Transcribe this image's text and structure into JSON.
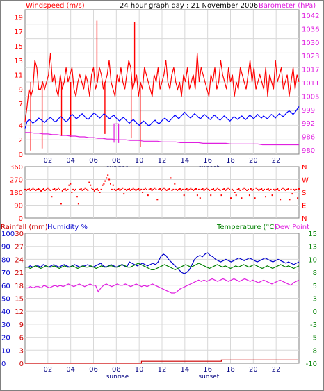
{
  "title": "24 hour graph day : 21 November 2006",
  "colors": {
    "wind": "#ff0000",
    "temp": "#0000ff",
    "baro": "#e020e0",
    "dir": "#ff0000",
    "rain": "#cc0000",
    "humid": "#0000cc",
    "temp2": "#008000",
    "dew": "#e020e0",
    "grid": "#d8d8d8"
  },
  "hour_ticks": [
    "02",
    "04",
    "06",
    "08",
    "10",
    "12",
    "14",
    "16",
    "18",
    "20",
    "22"
  ],
  "sunrise_label": "sunrise",
  "sunset_label": "sunset",
  "chart_data": [
    {
      "type": "line",
      "label_left": "Windspeed (m/s)",
      "label_right": "Barometer (hPa)",
      "ticks_left": [
        "19",
        "17",
        "15",
        "13",
        "11",
        "9",
        "7",
        "4",
        "2",
        "0"
      ],
      "ticks_right": [
        "1042",
        "1036",
        "1030",
        "1023",
        "1017",
        "1011",
        "1005",
        "999",
        "992",
        "986",
        "980"
      ],
      "ylim": [
        0,
        20
      ],
      "series": [
        {
          "name": "windspeed",
          "values": [
            4.5,
            6.5,
            9,
            8,
            9,
            13,
            12,
            9,
            9,
            10,
            9,
            10,
            11,
            14,
            10,
            11,
            9,
            8,
            11,
            9,
            10,
            12,
            10,
            11,
            12,
            9,
            8,
            10,
            11,
            10,
            9,
            11,
            10,
            8,
            11,
            12,
            9,
            10,
            12,
            11,
            9,
            10,
            11,
            13,
            10,
            9,
            8,
            11,
            10,
            12,
            10,
            9,
            11,
            13,
            12,
            9,
            10,
            11,
            8,
            10,
            9,
            12,
            11,
            10,
            9,
            8,
            11,
            10,
            12,
            9,
            10,
            11,
            13,
            10,
            9,
            11,
            12,
            10,
            9,
            10,
            8,
            11,
            10,
            12,
            9,
            10,
            11,
            9,
            14,
            10,
            12,
            11,
            10,
            9,
            8,
            11,
            10,
            12,
            9,
            10,
            13,
            11,
            10,
            9,
            12,
            10,
            11,
            8,
            10,
            9,
            12,
            11,
            10,
            9,
            11,
            13,
            10,
            12,
            9,
            10,
            11,
            10,
            9,
            12,
            8,
            11,
            10,
            9,
            13,
            10,
            11,
            12,
            9,
            10,
            11,
            8,
            10,
            12,
            9,
            11,
            10
          ],
          "spikes": [
            [
              0.5,
              0.5
            ],
            [
              1.5,
              0.8
            ],
            [
              3.2,
              2.5
            ],
            [
              4.0,
              2.4
            ],
            [
              6.3,
              18.5
            ],
            [
              7.0,
              2.8
            ],
            [
              9.3,
              2.2
            ],
            [
              9.6,
              18.3
            ],
            [
              10.1,
              1.0
            ]
          ]
        },
        {
          "name": "temperature",
          "values": [
            3.5,
            4.5,
            4.8,
            4.6,
            4.3,
            4.5,
            4.7,
            5.0,
            4.8,
            4.6,
            4.4,
            4.7,
            4.9,
            5.1,
            4.8,
            4.5,
            4.6,
            4.9,
            5.2,
            5.0,
            4.7,
            4.5,
            4.8,
            5.3,
            5.5,
            5.2,
            4.9,
            5.1,
            5.4,
            5.6,
            5.3,
            5.0,
            4.8,
            5.1,
            5.4,
            5.7,
            5.5,
            5.2,
            5.0,
            5.3,
            5.6,
            5.4,
            5.1,
            4.9,
            5.2,
            5.4,
            5.1,
            4.8,
            4.6,
            4.9,
            5.1,
            4.8,
            4.5,
            4.3,
            4.6,
            4.8,
            4.5,
            4.2,
            4.0,
            4.3,
            4.6,
            4.4,
            4.1,
            3.9,
            4.2,
            4.5,
            4.7,
            4.4,
            4.2,
            4.5,
            4.8,
            5.0,
            4.7,
            4.5,
            4.8,
            5.1,
            5.4,
            5.2,
            4.9,
            5.2,
            5.5,
            5.8,
            5.5,
            5.2,
            5.0,
            5.3,
            5.6,
            5.4,
            5.1,
            4.9,
            5.2,
            5.5,
            5.3,
            5.0,
            4.8,
            5.1,
            5.4,
            5.2,
            4.9,
            4.7,
            5.0,
            5.3,
            5.1,
            4.8,
            4.6,
            4.9,
            5.2,
            5.0,
            4.8,
            5.1,
            5.3,
            5.0,
            4.8,
            5.1,
            5.4,
            5.2,
            4.9,
            5.2,
            5.5,
            5.2,
            5.0,
            5.3,
            5.1,
            4.9,
            5.2,
            5.5,
            5.3,
            5.0,
            5.3,
            5.6,
            5.4,
            5.2,
            5.5,
            5.8,
            6.0,
            5.8,
            5.5,
            5.8,
            6.2,
            6.6
          ]
        },
        {
          "name": "barometer",
          "values": [
            3.0,
            3.0,
            2.9,
            2.9,
            2.8,
            2.8,
            2.7,
            2.7,
            2.6,
            2.6,
            2.5,
            2.5,
            2.4,
            2.4,
            2.3,
            2.3,
            2.2,
            2.2,
            2.1,
            2.1,
            2.0,
            2.0,
            2.0,
            1.9,
            1.9,
            1.9,
            1.8,
            1.8,
            1.8,
            1.8,
            1.7,
            1.7,
            1.7,
            1.7,
            1.6,
            1.6,
            1.6,
            1.6,
            1.6,
            1.5,
            1.5,
            1.5,
            1.5,
            1.5,
            1.5,
            1.4,
            1.4,
            1.4,
            1.4,
            1.4,
            1.4,
            1.4,
            1.3,
            1.3,
            1.3,
            1.3,
            1.3,
            1.3,
            1.3,
            1.3,
            1.3
          ],
          "spike_x": [
            7.8,
            8.2
          ],
          "spike_y": 4.2
        }
      ]
    },
    {
      "type": "scatter",
      "label_left": "",
      "ticks_left": [
        "360",
        "270",
        "180",
        "90",
        "0"
      ],
      "ticks_right": [
        "N",
        "W",
        "S",
        "E",
        "N"
      ],
      "ylim": [
        0,
        360
      ],
      "series": [
        {
          "name": "wind_direction",
          "values": [
            200,
            195,
            200,
            205,
            195,
            200,
            210,
            200,
            195,
            200,
            205,
            200,
            190,
            200,
            205,
            195,
            200,
            210,
            200,
            195,
            150,
            200,
            205,
            195,
            200,
            210,
            200,
            100,
            190,
            200,
            205,
            195,
            200,
            230,
            240,
            180,
            200,
            195,
            200,
            150,
            100,
            200,
            205,
            195,
            200,
            210,
            200,
            195,
            250,
            230,
            210,
            200,
            190,
            200,
            205,
            195,
            180,
            200,
            230,
            240,
            260,
            280,
            300,
            270,
            240,
            200,
            230,
            200,
            195,
            200,
            205,
            195,
            200,
            210,
            170,
            200,
            195,
            200,
            205,
            195,
            200,
            210,
            200,
            195,
            200,
            205,
            195,
            200,
            180,
            200,
            210,
            200,
            160,
            200,
            205,
            195,
            200,
            210,
            200,
            130,
            200,
            205,
            195,
            200,
            210,
            200,
            195,
            200,
            205,
            280,
            195,
            200,
            240,
            200,
            195,
            200,
            205,
            195,
            200,
            160,
            200,
            205,
            195,
            200,
            210,
            200,
            195,
            200,
            205,
            160,
            200,
            140,
            200,
            205,
            195,
            200,
            210,
            200,
            195,
            160,
            200,
            205,
            195,
            200,
            210,
            200,
            195,
            160,
            200,
            205,
            195,
            200,
            210,
            200,
            140,
            200,
            195,
            180,
            160,
            200,
            205,
            195,
            140,
            200,
            210,
            200,
            195,
            200,
            160,
            205,
            195,
            200,
            140,
            210,
            200,
            195,
            200,
            205,
            195,
            200,
            150,
            200,
            205,
            195,
            200,
            160,
            200,
            195,
            200,
            205,
            195,
            130,
            200,
            210,
            200,
            195,
            200,
            205,
            130,
            200,
            170,
            200,
            195,
            200,
            140,
            205
          ]
        }
      ]
    },
    {
      "type": "line",
      "label_left_a": "Rainfall (mm)",
      "label_left_b": "Humidity %",
      "label_right_a": "Temperature (°C)",
      "label_right_b": "Dew Point",
      "ticks_rain": [
        "30",
        "27",
        "24",
        "21",
        "18",
        "15",
        "12",
        "9",
        "6",
        "3",
        "0"
      ],
      "ticks_humid": [
        "100",
        "90",
        "80",
        "70",
        "60",
        "50",
        "40",
        "30",
        "20",
        "10",
        "0"
      ],
      "ticks_temp": [
        "15",
        "13",
        "10",
        "8",
        "5",
        "3",
        "0",
        "-3",
        "-5",
        "-8",
        "-10"
      ],
      "ylim": [
        0,
        100
      ],
      "series": [
        {
          "name": "humidity",
          "values": [
            74,
            74,
            75,
            74,
            75,
            75,
            74,
            76,
            75,
            74,
            75,
            76,
            75,
            74,
            75,
            76,
            75,
            74,
            75,
            76,
            75,
            74,
            75,
            75,
            76,
            75,
            74,
            75,
            76,
            77,
            75,
            74,
            75,
            76,
            75,
            74,
            75,
            76,
            75,
            74,
            78,
            77,
            76,
            75,
            76,
            77,
            76,
            75,
            76,
            77,
            76,
            78,
            82,
            84,
            83,
            80,
            78,
            76,
            74,
            72,
            70,
            69,
            70,
            72,
            76,
            80,
            82,
            83,
            82,
            84,
            85,
            83,
            82,
            80,
            79,
            78,
            79,
            80,
            79,
            78,
            79,
            80,
            81,
            80,
            79,
            80,
            81,
            80,
            79,
            78,
            79,
            80,
            81,
            80,
            79,
            78,
            79,
            80,
            79,
            78,
            77,
            78,
            77,
            76,
            77,
            78
          ]
        },
        {
          "name": "temperature",
          "values": [
            74,
            74,
            73,
            74,
            75,
            74,
            73,
            74,
            75,
            74,
            74,
            75,
            74,
            73,
            74,
            75,
            74,
            74,
            75,
            74,
            73,
            74,
            75,
            74,
            74,
            75,
            74,
            73,
            74,
            75,
            74,
            74,
            75,
            75,
            74,
            74,
            75,
            76,
            75,
            74,
            74,
            75,
            76,
            77,
            76,
            75,
            74,
            73,
            72,
            72,
            73,
            74,
            75,
            76,
            75,
            74,
            73,
            72,
            73,
            74,
            75,
            76,
            75,
            74,
            75,
            76,
            77,
            76,
            75,
            74,
            73,
            74,
            75,
            76,
            75,
            74,
            75,
            74,
            73,
            74,
            75,
            74,
            75,
            76,
            75,
            74,
            75,
            76,
            75,
            74,
            73,
            74,
            75,
            74,
            73,
            74,
            75,
            76,
            75,
            74,
            75,
            74,
            73,
            74,
            75
          ]
        },
        {
          "name": "dew_point",
          "values": [
            58,
            58,
            59,
            58,
            59,
            59,
            58,
            60,
            59,
            58,
            59,
            60,
            59,
            60,
            59,
            60,
            61,
            60,
            59,
            60,
            61,
            60,
            59,
            60,
            61,
            60,
            60,
            55,
            58,
            60,
            61,
            60,
            59,
            60,
            61,
            60,
            60,
            61,
            60,
            59,
            60,
            61,
            60,
            59,
            60,
            59,
            60,
            61,
            60,
            59,
            58,
            57,
            56,
            55,
            54,
            54,
            55,
            57,
            58,
            59,
            60,
            61,
            62,
            63,
            64,
            63,
            64,
            63,
            64,
            65,
            64,
            63,
            64,
            65,
            64,
            63,
            64,
            65,
            64,
            63,
            64,
            65,
            64,
            63,
            64,
            63,
            62,
            63,
            64,
            63,
            62,
            61,
            62,
            63,
            64,
            63,
            62,
            61,
            60,
            62,
            63,
            64
          ]
        },
        {
          "name": "rainfall",
          "values": [
            [
              0,
              0
            ],
            [
              10.2,
              0
            ],
            [
              10.2,
              1.5
            ],
            [
              17.2,
              1.5
            ],
            [
              17.2,
              2.5
            ],
            [
              23.9,
              2.5
            ]
          ]
        }
      ]
    }
  ]
}
